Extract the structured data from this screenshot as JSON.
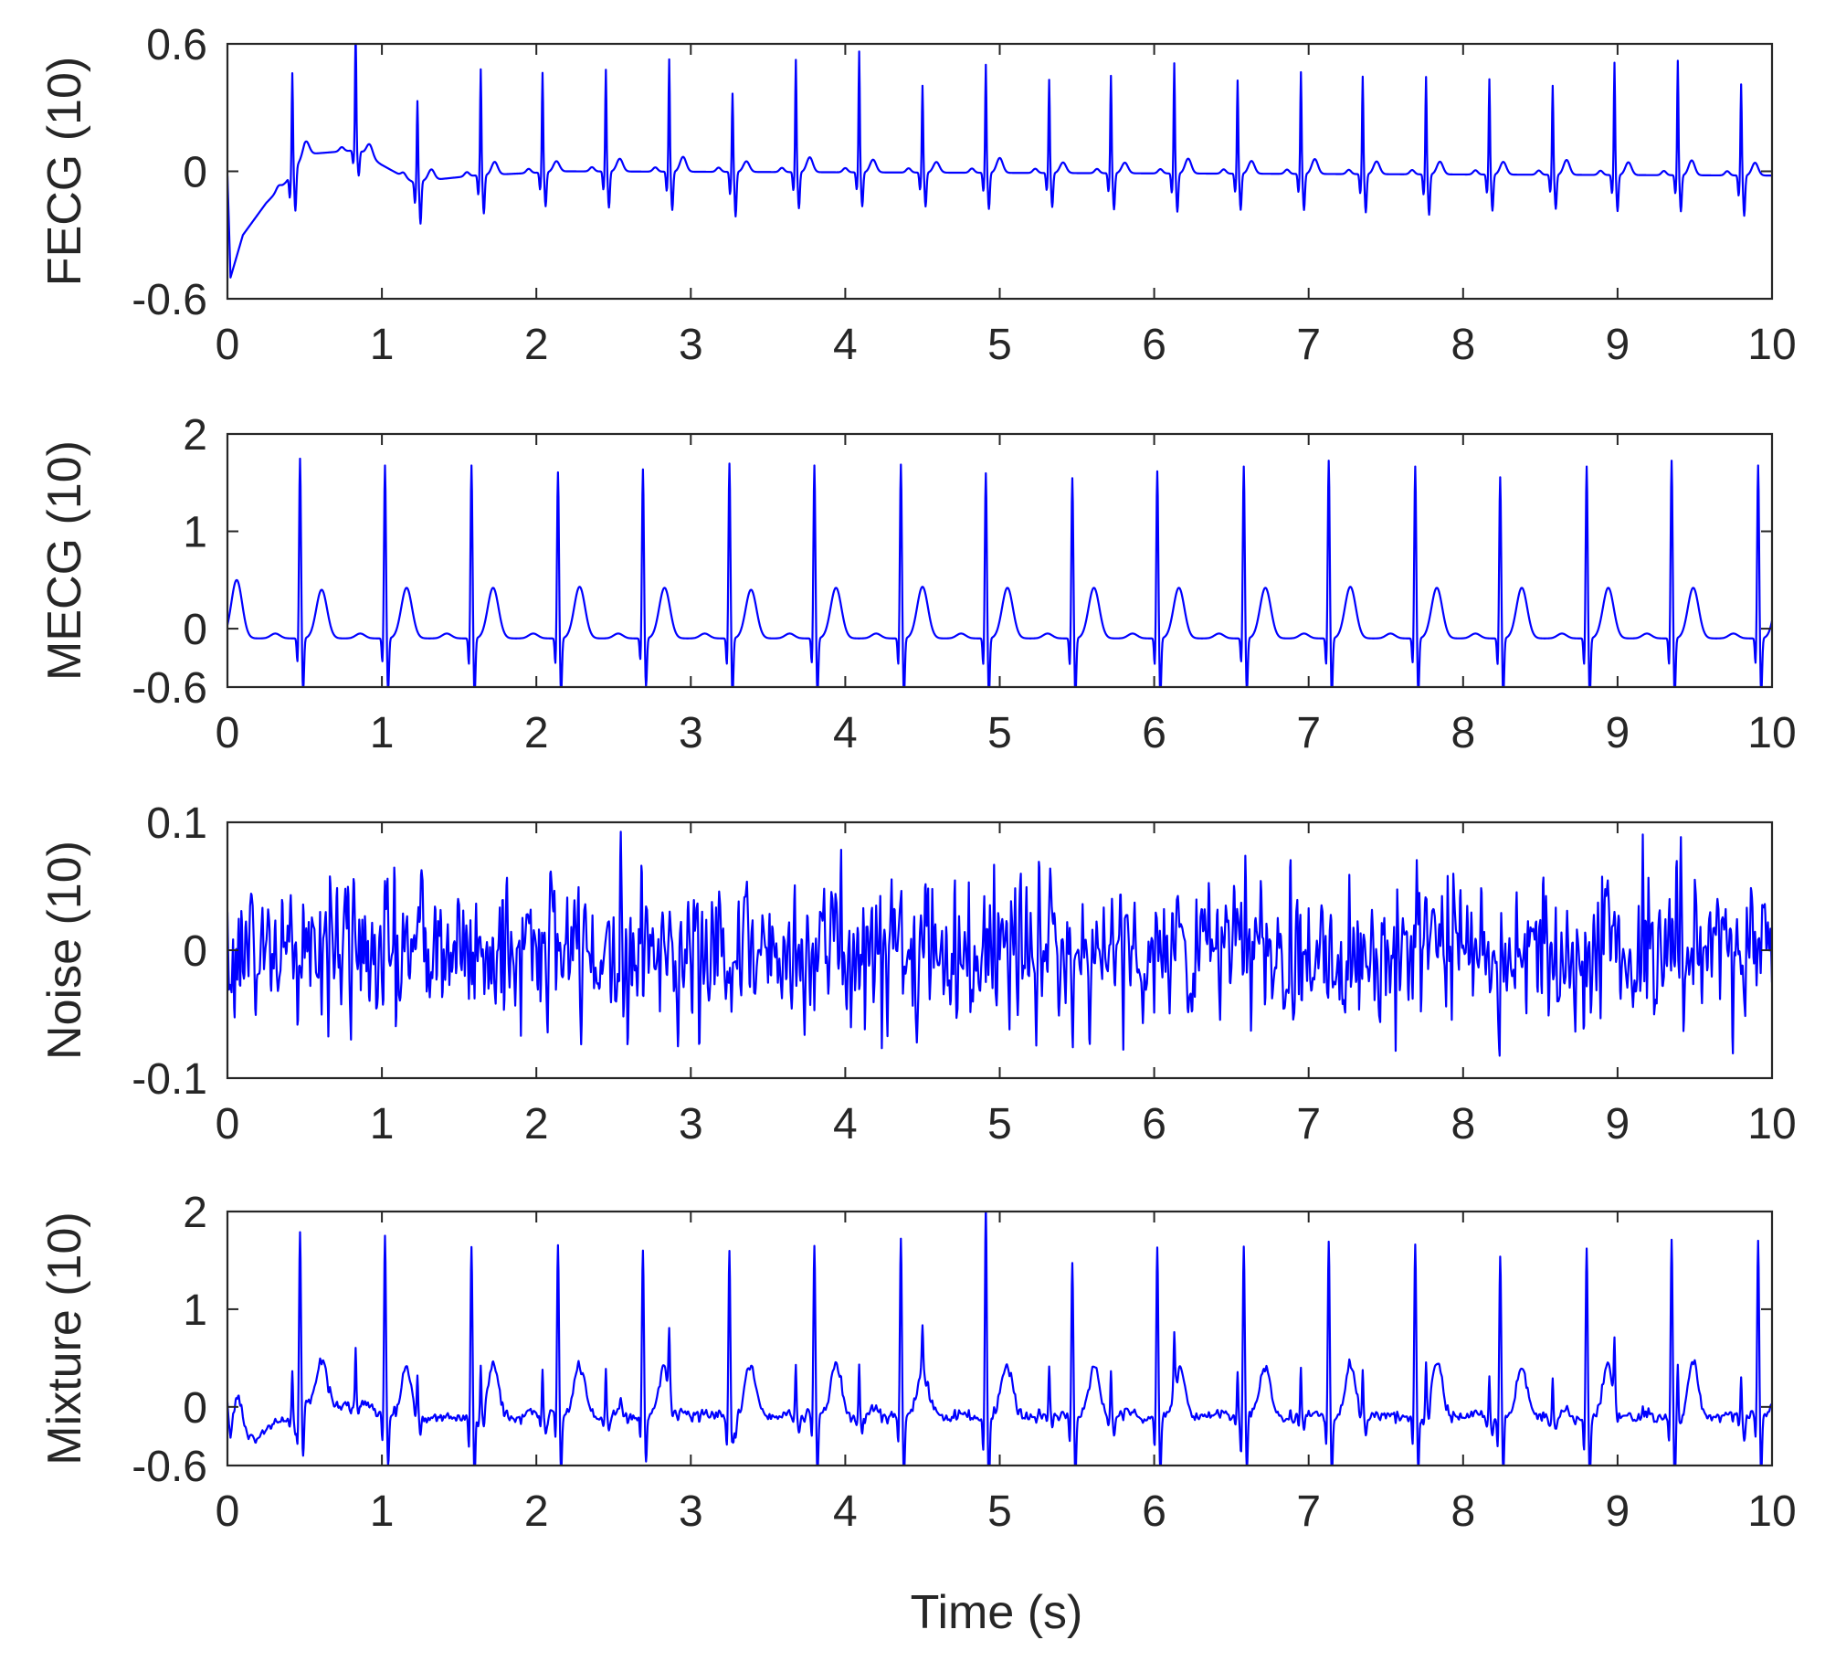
{
  "figure": {
    "xlabel": "Time (s)",
    "line_color": "#0000ff",
    "axis_color": "#262626"
  },
  "chart_data": [
    {
      "type": "line",
      "ylabel": "FECG (10)",
      "xlim": [
        0,
        10
      ],
      "ylim": [
        -0.6,
        0.6
      ],
      "x_ticks": [
        0,
        1,
        2,
        3,
        4,
        5,
        6,
        7,
        8,
        9,
        10
      ],
      "y_ticks": [
        -0.6,
        0,
        0.6
      ],
      "y_tick_labels": [
        "-0.6",
        "0",
        "0.6"
      ],
      "series": [
        {
          "kind": "ecg",
          "baseline_points": [
            [
              0,
              -0.02
            ],
            [
              0.02,
              -0.5
            ],
            [
              0.1,
              -0.3
            ],
            [
              0.25,
              -0.15
            ],
            [
              0.38,
              -0.05
            ],
            [
              0.5,
              0.08
            ],
            [
              0.85,
              0.1
            ],
            [
              1.0,
              0.03
            ],
            [
              1.2,
              -0.05
            ],
            [
              1.6,
              -0.02
            ],
            [
              2.2,
              0.0
            ],
            [
              10,
              -0.02
            ]
          ],
          "beats": [
            {
              "t": 0.42,
              "r": 0.47,
              "s": -0.2,
              "tw": 0.06
            },
            {
              "t": 0.83,
              "r": 0.57,
              "s": -0.12,
              "tw": 0.06
            },
            {
              "t": 1.23,
              "r": 0.38,
              "s": -0.2,
              "tw": 0.05
            },
            {
              "t": 1.64,
              "r": 0.5,
              "s": -0.18,
              "tw": 0.06
            },
            {
              "t": 2.04,
              "r": 0.47,
              "s": -0.16,
              "tw": 0.05
            },
            {
              "t": 2.45,
              "r": 0.48,
              "s": -0.17,
              "tw": 0.06
            },
            {
              "t": 2.86,
              "r": 0.53,
              "s": -0.18,
              "tw": 0.07
            },
            {
              "t": 3.27,
              "r": 0.37,
              "s": -0.21,
              "tw": 0.05
            },
            {
              "t": 3.68,
              "r": 0.53,
              "s": -0.17,
              "tw": 0.07
            },
            {
              "t": 4.09,
              "r": 0.57,
              "s": -0.16,
              "tw": 0.06
            },
            {
              "t": 4.5,
              "r": 0.41,
              "s": -0.16,
              "tw": 0.05
            },
            {
              "t": 4.91,
              "r": 0.51,
              "s": -0.17,
              "tw": 0.07
            },
            {
              "t": 5.32,
              "r": 0.44,
              "s": -0.16,
              "tw": 0.05
            },
            {
              "t": 5.72,
              "r": 0.46,
              "s": -0.17,
              "tw": 0.05
            },
            {
              "t": 6.13,
              "r": 0.52,
              "s": -0.18,
              "tw": 0.07
            },
            {
              "t": 6.54,
              "r": 0.44,
              "s": -0.17,
              "tw": 0.06
            },
            {
              "t": 6.95,
              "r": 0.48,
              "s": -0.17,
              "tw": 0.07
            },
            {
              "t": 7.35,
              "r": 0.46,
              "s": -0.18,
              "tw": 0.06
            },
            {
              "t": 7.76,
              "r": 0.46,
              "s": -0.19,
              "tw": 0.06
            },
            {
              "t": 8.17,
              "r": 0.45,
              "s": -0.17,
              "tw": 0.06
            },
            {
              "t": 8.58,
              "r": 0.42,
              "s": -0.16,
              "tw": 0.07
            },
            {
              "t": 8.98,
              "r": 0.53,
              "s": -0.17,
              "tw": 0.06
            },
            {
              "t": 9.39,
              "r": 0.54,
              "s": -0.17,
              "tw": 0.07
            },
            {
              "t": 9.8,
              "r": 0.43,
              "s": -0.19,
              "tw": 0.06
            }
          ]
        }
      ]
    },
    {
      "type": "line",
      "ylabel": "MECG (10)",
      "xlim": [
        0,
        10
      ],
      "ylim": [
        -0.6,
        2
      ],
      "x_ticks": [
        0,
        1,
        2,
        3,
        4,
        5,
        6,
        7,
        8,
        9,
        10
      ],
      "y_ticks": [
        -0.6,
        0,
        1,
        2
      ],
      "y_tick_labels": [
        "-0.6",
        "0",
        "1",
        "2"
      ],
      "series": [
        {
          "kind": "ecg",
          "baseline_points": [
            [
              0,
              -0.1
            ],
            [
              10,
              -0.1
            ]
          ],
          "first_t_wave": {
            "t": 0.06,
            "amp": 0.6
          },
          "beats": [
            {
              "t": 0.47,
              "r": 1.85,
              "s": -0.55,
              "tw": 0.5
            },
            {
              "t": 1.02,
              "r": 1.78,
              "s": -0.55,
              "tw": 0.52
            },
            {
              "t": 1.58,
              "r": 1.78,
              "s": -0.6,
              "tw": 0.52
            },
            {
              "t": 2.14,
              "r": 1.71,
              "s": -0.58,
              "tw": 0.53
            },
            {
              "t": 2.69,
              "r": 1.74,
              "s": -0.5,
              "tw": 0.52
            },
            {
              "t": 3.25,
              "r": 1.8,
              "s": -0.6,
              "tw": 0.5
            },
            {
              "t": 3.8,
              "r": 1.78,
              "s": -0.57,
              "tw": 0.52
            },
            {
              "t": 4.36,
              "r": 1.79,
              "s": -0.6,
              "tw": 0.53
            },
            {
              "t": 4.91,
              "r": 1.7,
              "s": -0.6,
              "tw": 0.52
            },
            {
              "t": 5.47,
              "r": 1.65,
              "s": -0.6,
              "tw": 0.52
            },
            {
              "t": 6.02,
              "r": 1.72,
              "s": -0.6,
              "tw": 0.52
            },
            {
              "t": 6.58,
              "r": 1.77,
              "s": -0.55,
              "tw": 0.52
            },
            {
              "t": 7.13,
              "r": 1.83,
              "s": -0.6,
              "tw": 0.53
            },
            {
              "t": 7.69,
              "r": 1.77,
              "s": -0.57,
              "tw": 0.52
            },
            {
              "t": 8.24,
              "r": 1.66,
              "s": -0.6,
              "tw": 0.52
            },
            {
              "t": 8.8,
              "r": 1.77,
              "s": -0.6,
              "tw": 0.52
            },
            {
              "t": 9.35,
              "r": 1.83,
              "s": -0.6,
              "tw": 0.52
            },
            {
              "t": 9.91,
              "r": 1.78,
              "s": -0.58,
              "tw": 0.5
            }
          ]
        }
      ]
    },
    {
      "type": "line",
      "ylabel": "Noise (10)",
      "xlim": [
        0,
        10
      ],
      "ylim": [
        -0.1,
        0.1
      ],
      "x_ticks": [
        0,
        1,
        2,
        3,
        4,
        5,
        6,
        7,
        8,
        9,
        10
      ],
      "y_ticks": [
        -0.1,
        0,
        0.1
      ],
      "y_tick_labels": [
        "-0.1",
        "0",
        "0.1"
      ],
      "series": [
        {
          "kind": "noise",
          "std": 0.032,
          "samples": 1100
        }
      ]
    },
    {
      "type": "line",
      "ylabel": "Mixture (10)",
      "xlim": [
        0,
        10
      ],
      "ylim": [
        -0.6,
        2
      ],
      "x_ticks": [
        0,
        1,
        2,
        3,
        4,
        5,
        6,
        7,
        8,
        9,
        10
      ],
      "y_ticks": [
        -0.6,
        0,
        1,
        2
      ],
      "y_tick_labels": [
        "-0.6",
        "0",
        "1",
        "2"
      ],
      "series": [
        {
          "kind": "sum",
          "components": [
            0,
            1,
            2
          ]
        }
      ]
    }
  ]
}
